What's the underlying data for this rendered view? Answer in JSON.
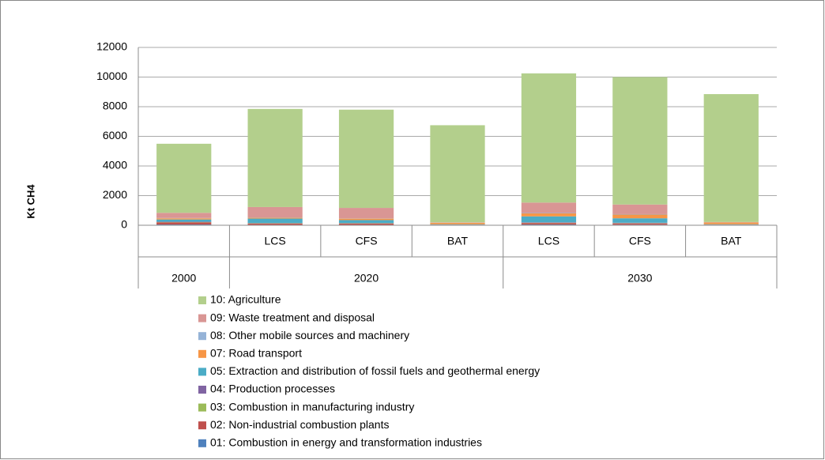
{
  "chart_data": {
    "type": "stacked_bar",
    "y_label": "Kt CH4",
    "groups": [
      {
        "name": "2000",
        "categories": [
          null
        ]
      },
      {
        "name": "2020",
        "categories": [
          "LCS",
          "CFS",
          "BAT"
        ]
      },
      {
        "name": "2030",
        "categories": [
          "LCS",
          "CFS",
          "BAT"
        ]
      }
    ],
    "ylim": [
      0,
      12000
    ],
    "yticks": [
      0,
      2000,
      4000,
      6000,
      8000,
      10000,
      12000
    ],
    "grid": true,
    "legend": "bottom",
    "series": [
      {
        "name": "01: Combustion in energy and transformation industries",
        "color": "#4f81bd",
        "values": [
          50,
          30,
          30,
          10,
          50,
          40,
          10
        ]
      },
      {
        "name": "02: Non-industrial combustion plants",
        "color": "#c0504d",
        "values": [
          150,
          80,
          80,
          20,
          100,
          80,
          20
        ]
      },
      {
        "name": "03: Combustion in manufacturing industry",
        "color": "#9bbb59",
        "values": [
          20,
          20,
          20,
          10,
          20,
          20,
          10
        ]
      },
      {
        "name": "04: Production processes",
        "color": "#8064a2",
        "values": [
          20,
          20,
          20,
          10,
          30,
          30,
          10
        ]
      },
      {
        "name": "05: Extraction and distribution of fossil fuels and geothermal energy",
        "color": "#4bacc6",
        "values": [
          150,
          300,
          200,
          20,
          400,
          300,
          20
        ]
      },
      {
        "name": "07: Road transport",
        "color": "#f79646",
        "values": [
          80,
          60,
          100,
          100,
          200,
          250,
          120
        ]
      },
      {
        "name": "08: Other mobile sources and machinery",
        "color": "#95b3d7",
        "values": [
          20,
          20,
          20,
          10,
          30,
          30,
          10
        ]
      },
      {
        "name": "09: Waste treatment and disposal",
        "color": "#d99694",
        "values": [
          350,
          700,
          700,
          20,
          700,
          650,
          20
        ]
      },
      {
        "name": "10: Agriculture",
        "color": "#b3cf8c",
        "values": [
          4660,
          6620,
          6630,
          6550,
          8720,
          8600,
          8630
        ]
      }
    ]
  }
}
